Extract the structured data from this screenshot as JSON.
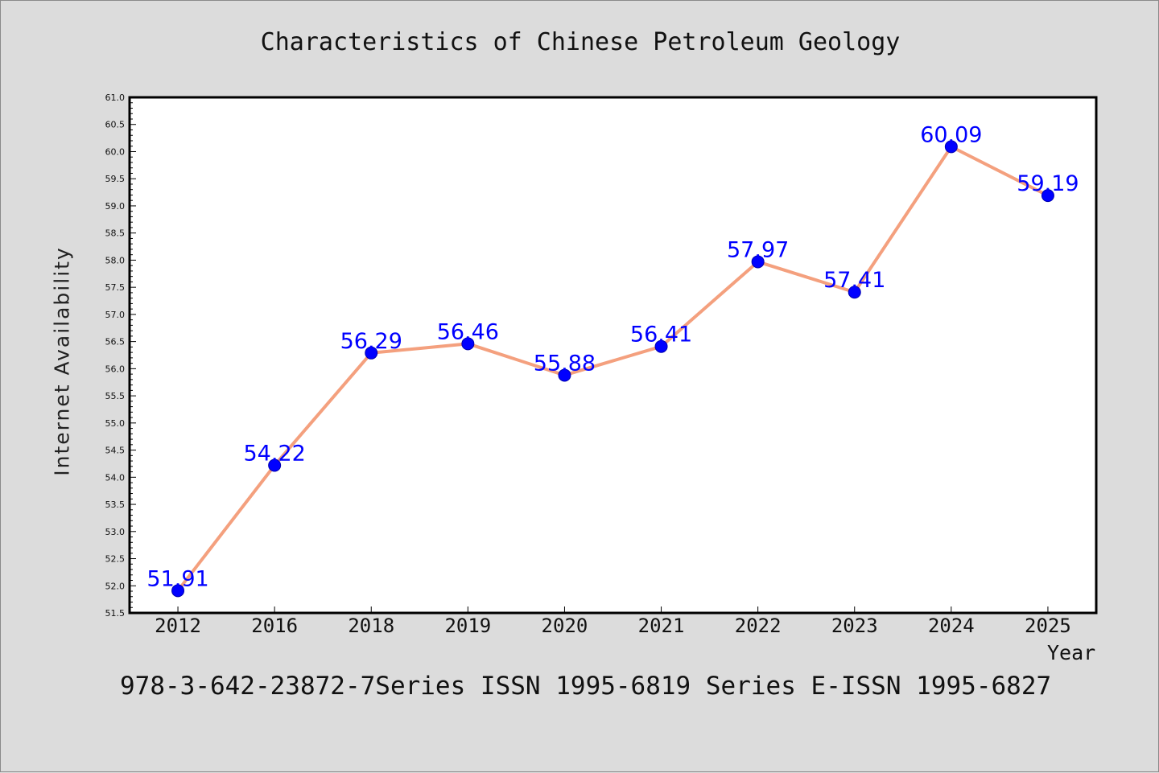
{
  "chart_data": {
    "type": "line",
    "title": "Characteristics of Chinese Petroleum Geology",
    "xlabel": "Year",
    "ylabel": "Internet Availability",
    "categories": [
      "2012",
      "2016",
      "2018",
      "2019",
      "2020",
      "2021",
      "2022",
      "2023",
      "2024",
      "2025"
    ],
    "series": [
      {
        "values": [
          51.91,
          54.22,
          56.29,
          56.46,
          55.88,
          56.41,
          57.97,
          57.41,
          60.09,
          59.19
        ],
        "line_color": "#f4a07e",
        "marker_color": "#0000ff",
        "label_color": "#0000ff"
      }
    ],
    "ylim": [
      51.5,
      61.0
    ],
    "yticks": [
      "51.5",
      "52.0",
      "52.5",
      "53.0",
      "53.5",
      "54.0",
      "54.5",
      "55.0",
      "55.5",
      "56.0",
      "56.5",
      "57.0",
      "57.5",
      "58.0",
      "58.5",
      "59.0",
      "59.5",
      "60.0",
      "60.5",
      "61.0"
    ],
    "grid": false,
    "legend": "none",
    "footer": "978-3-642-23872-7Series ISSN 1995-6819 Series E-ISSN 1995-6827"
  }
}
